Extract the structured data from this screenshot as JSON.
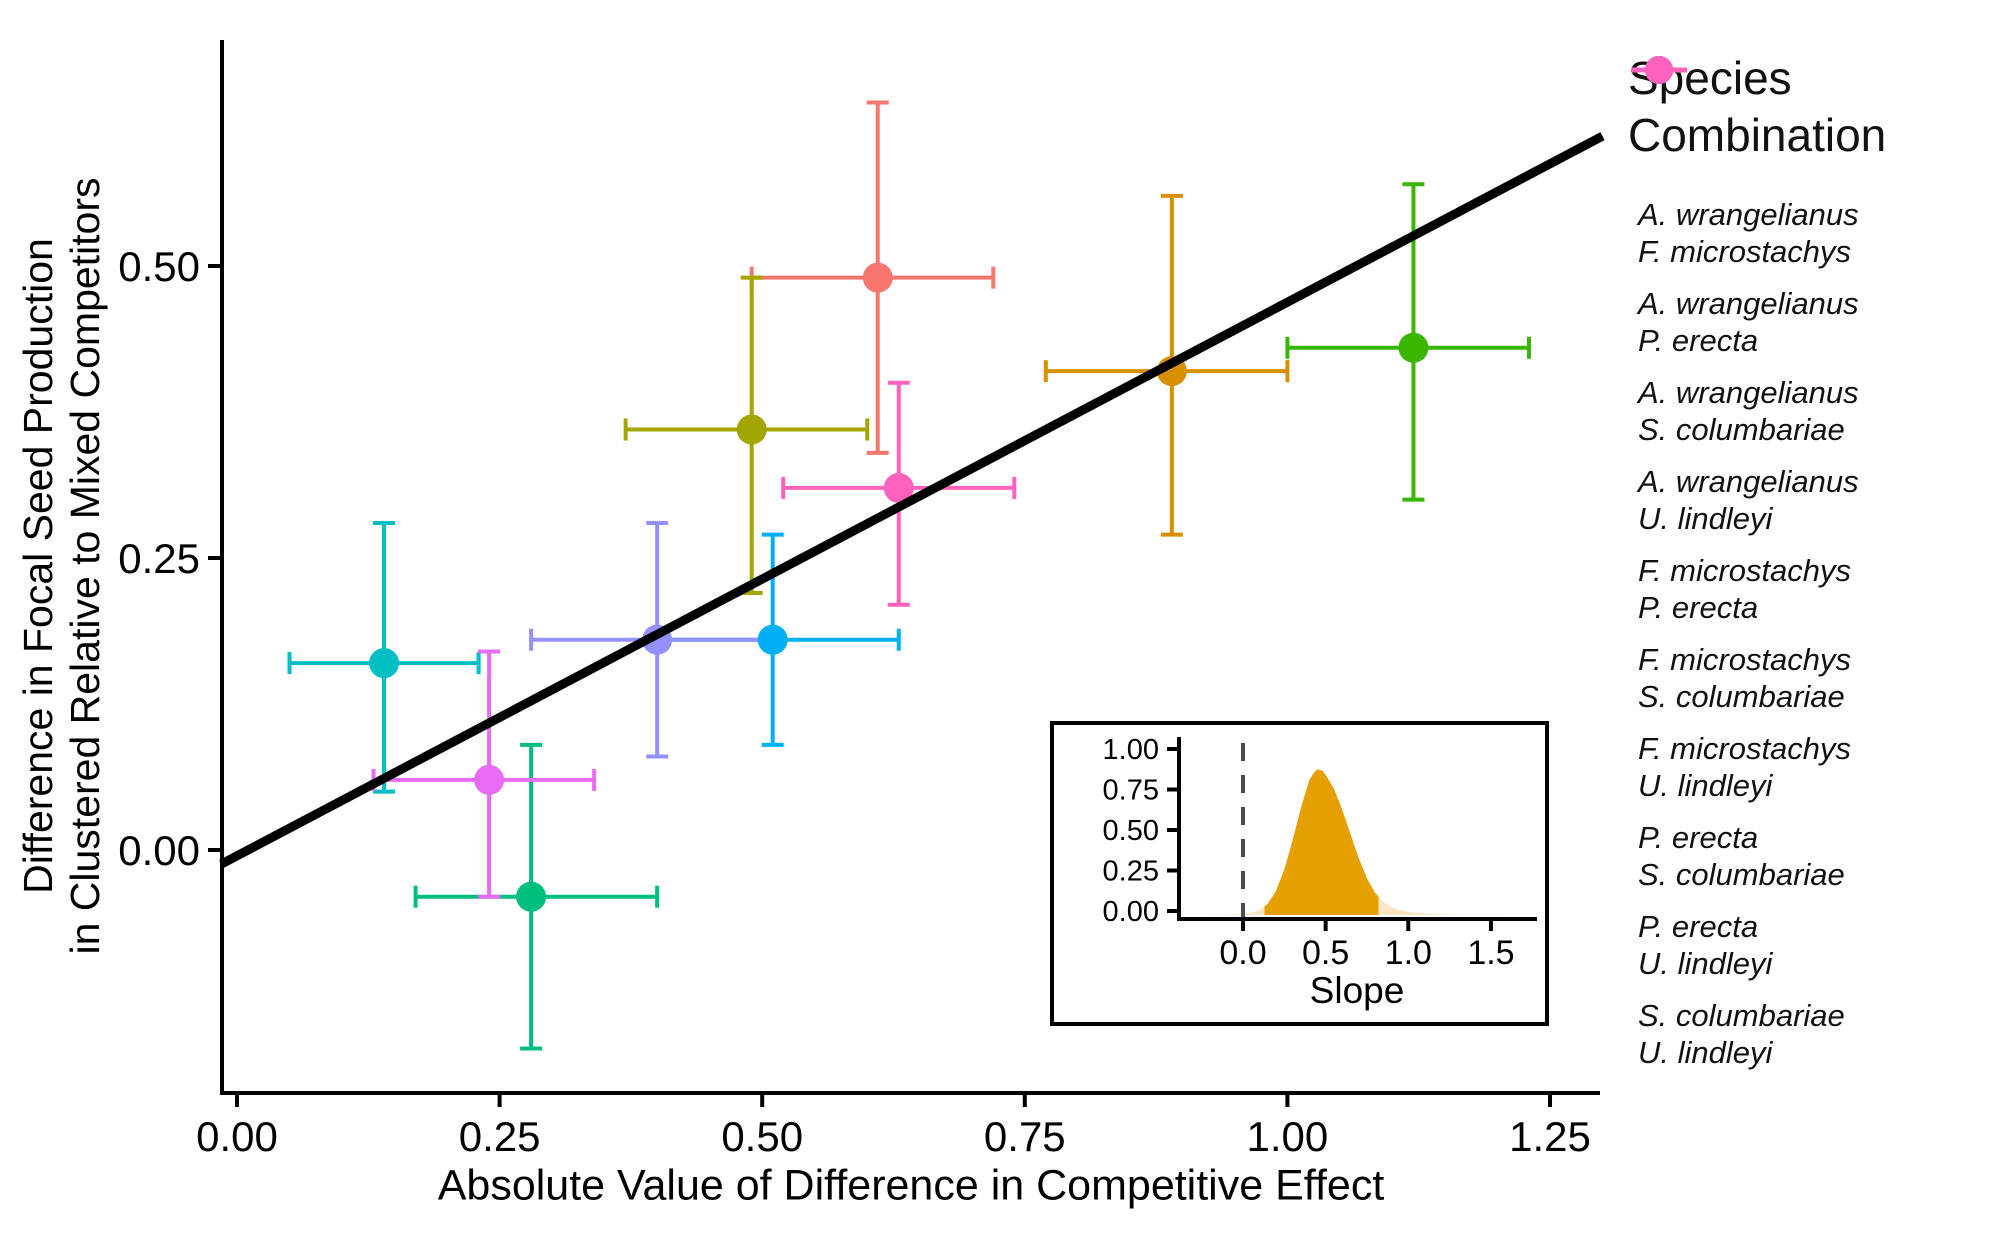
{
  "axes": {
    "x_label": "Absolute Value of Difference in Competitive Effect",
    "y_label_line1": "Difference in Focal Seed Production",
    "y_label_line2": "in Clustered Relative to Mixed Competitors",
    "x_ticks": [
      "0.00",
      "0.25",
      "0.50",
      "0.75",
      "1.00",
      "1.25"
    ],
    "y_ticks": [
      "0.50",
      "0.25",
      "0.00"
    ]
  },
  "legend": {
    "title_line1": "Species",
    "title_line2": "Combination",
    "items": [
      {
        "species1": "A. wrangelianus",
        "species2": "F. microstachys",
        "color": "#F8766D"
      },
      {
        "species1": "A. wrangelianus",
        "species2": "P. erecta",
        "color": "#D89000"
      },
      {
        "species1": "A. wrangelianus",
        "species2": "S. columbariae",
        "color": "#A3A500"
      },
      {
        "species1": "A. wrangelianus",
        "species2": "U. lindleyi",
        "color": "#39B600"
      },
      {
        "species1": "F. microstachys",
        "species2": "P. erecta",
        "color": "#00BF7D"
      },
      {
        "species1": "F. microstachys",
        "species2": "S. columbariae",
        "color": "#00BFC4"
      },
      {
        "species1": "F. microstachys",
        "species2": "U. lindleyi",
        "color": "#00B0F6"
      },
      {
        "species1": "P. erecta",
        "species2": "S. columbariae",
        "color": "#9590FF"
      },
      {
        "species1": "P. erecta",
        "species2": "U. lindleyi",
        "color": "#E76BF3"
      },
      {
        "species1": "S. columbariae",
        "species2": "U. lindleyi",
        "color": "#FF62BC"
      }
    ]
  },
  "chart_data": {
    "type": "scatter",
    "title": "",
    "xlabel": "Absolute Value of Difference in Competitive Effect",
    "ylabel": "Difference in Focal Seed Production in Clustered Relative to Mixed Competitors",
    "xlim": [
      -0.015,
      1.3
    ],
    "ylim": [
      -0.21,
      0.69
    ],
    "x_tick_values": [
      0.0,
      0.25,
      0.5,
      0.75,
      1.0,
      1.25
    ],
    "y_tick_values": [
      0.5,
      0.25,
      0.0
    ],
    "grid": false,
    "legend_position": "right",
    "regression_line": {
      "slope": 0.474,
      "intercept": -0.005,
      "x_start": -0.015,
      "x_end": 1.3,
      "color": "#000000"
    },
    "points": [
      {
        "label": "A. wrangelianus + F. microstachys",
        "color": "#F8766D",
        "x": 0.61,
        "y": 0.49,
        "xmin": 0.49,
        "xmax": 0.72,
        "ymin": 0.34,
        "ymax": 0.64
      },
      {
        "label": "A. wrangelianus + P. erecta",
        "color": "#D89000",
        "x": 0.89,
        "y": 0.41,
        "xmin": 0.77,
        "xmax": 1.0,
        "ymin": 0.27,
        "ymax": 0.56
      },
      {
        "label": "A. wrangelianus + S. columbariae",
        "color": "#A3A500",
        "x": 0.49,
        "y": 0.36,
        "xmin": 0.37,
        "xmax": 0.6,
        "ymin": 0.22,
        "ymax": 0.49
      },
      {
        "label": "A. wrangelianus + U. lindleyi",
        "color": "#39B600",
        "x": 1.12,
        "y": 0.43,
        "xmin": 1.0,
        "xmax": 1.23,
        "ymin": 0.3,
        "ymax": 0.57
      },
      {
        "label": "F. microstachys + P. erecta",
        "color": "#00BF7D",
        "x": 0.28,
        "y": -0.04,
        "xmin": 0.17,
        "xmax": 0.4,
        "ymin": -0.17,
        "ymax": 0.09
      },
      {
        "label": "F. microstachys + S. columbariae",
        "color": "#00BFC4",
        "x": 0.14,
        "y": 0.16,
        "xmin": 0.05,
        "xmax": 0.23,
        "ymin": 0.05,
        "ymax": 0.28
      },
      {
        "label": "F. microstachys + U. lindleyi",
        "color": "#00B0F6",
        "x": 0.51,
        "y": 0.18,
        "xmin": 0.4,
        "xmax": 0.63,
        "ymin": 0.09,
        "ymax": 0.27
      },
      {
        "label": "P. erecta + S. columbariae",
        "color": "#9590FF",
        "x": 0.4,
        "y": 0.18,
        "xmin": 0.28,
        "xmax": 0.51,
        "ymin": 0.08,
        "ymax": 0.28
      },
      {
        "label": "P. erecta + U. lindleyi",
        "color": "#E76BF3",
        "x": 0.24,
        "y": 0.06,
        "xmin": 0.13,
        "xmax": 0.34,
        "ymin": -0.04,
        "ymax": 0.17
      },
      {
        "label": "S. columbariae + U. lindleyi",
        "color": "#FF62BC",
        "x": 0.63,
        "y": 0.31,
        "xmin": 0.52,
        "xmax": 0.74,
        "ymin": 0.21,
        "ymax": 0.4
      }
    ],
    "inset": {
      "type": "area",
      "xlabel": "Slope",
      "x_ticks": [
        "0.0",
        "0.5",
        "1.0",
        "1.5"
      ],
      "x_tick_values": [
        0.0,
        0.5,
        1.0,
        1.5
      ],
      "y_ticks": [
        "1.00",
        "0.75",
        "0.50",
        "0.25",
        "0.00"
      ],
      "y_tick_values": [
        1.0,
        0.75,
        0.5,
        0.25,
        0.0
      ],
      "xlim": [
        -0.38,
        1.78
      ],
      "ylim": [
        0,
        1.06
      ],
      "dashed_line_x": 0.0,
      "density_peak_x": 0.45,
      "density_peak_height": 0.9,
      "credible_interval": [
        0.13,
        0.82
      ],
      "density_x": [
        -0.3,
        -0.15,
        -0.05,
        0.0,
        0.05,
        0.1,
        0.15,
        0.2,
        0.25,
        0.3,
        0.35,
        0.4,
        0.43,
        0.45,
        0.48,
        0.5,
        0.55,
        0.6,
        0.65,
        0.7,
        0.75,
        0.8,
        0.85,
        0.9,
        0.95,
        1.0,
        1.1,
        1.2,
        1.35,
        1.55,
        1.75
      ],
      "density_y": [
        0.0,
        0.001,
        0.003,
        0.006,
        0.013,
        0.03,
        0.07,
        0.15,
        0.28,
        0.46,
        0.66,
        0.83,
        0.88,
        0.9,
        0.89,
        0.865,
        0.78,
        0.65,
        0.5,
        0.35,
        0.225,
        0.135,
        0.08,
        0.048,
        0.03,
        0.02,
        0.009,
        0.004,
        0.002,
        0.001,
        0.0
      ],
      "fill_color": "#E69F00",
      "tail_color": "#FAE6C3",
      "dashed_color": "#4D4D4D"
    }
  }
}
